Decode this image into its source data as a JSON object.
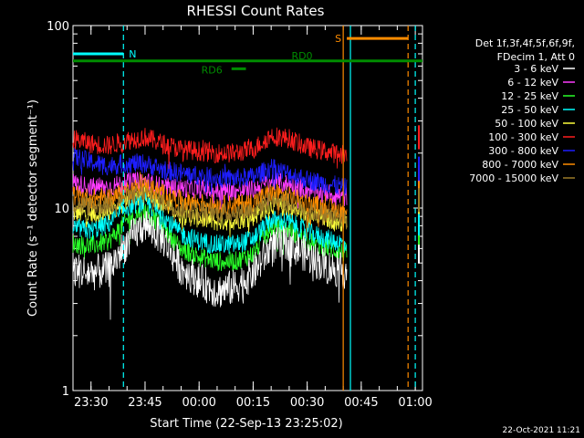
{
  "chart_data": {
    "type": "line",
    "title": "RHESSI Count Rates",
    "xlabel": "Start Time (22-Sep-13 23:25:02)",
    "ylabel": "Count Rate (s⁻¹ detector segment⁻¹)",
    "y_scale": "log",
    "ylim": [
      1,
      100
    ],
    "y_tick_labels": [
      "1",
      "10",
      "100"
    ],
    "x_tick_labels": [
      "23:30",
      "23:45",
      "00:00",
      "00:15",
      "00:30",
      "00:45",
      "01:00"
    ],
    "x_minutes": [
      5,
      20,
      35,
      50,
      65,
      80,
      95
    ],
    "xlim_minutes": [
      0,
      97
    ],
    "grid": false,
    "legend": {
      "position": "right",
      "header": [
        "Det 1f,3f,4f,5f,6f,9f,",
        "FDecim 1, Att 0"
      ]
    },
    "series": [
      {
        "name": "3 - 6 keV",
        "color": "#ffffff",
        "x": [
          0,
          5,
          10,
          15,
          20,
          25,
          30,
          35,
          40,
          45,
          50,
          55,
          60,
          65,
          70,
          75,
          76
        ],
        "values": [
          4.6,
          4.4,
          4.6,
          6.5,
          8.2,
          6.8,
          4.7,
          4.0,
          3.5,
          3.7,
          4.4,
          6.2,
          6.4,
          5.5,
          4.8,
          4.5,
          4.5
        ]
      },
      {
        "name": "6 - 12 keV",
        "color": "#ff3cff",
        "x": [
          0,
          5,
          10,
          15,
          20,
          25,
          30,
          35,
          40,
          45,
          50,
          55,
          60,
          65,
          70,
          75,
          76
        ],
        "values": [
          13.8,
          13.0,
          13.0,
          13.8,
          14.0,
          13.0,
          12.8,
          12.8,
          12.4,
          12.4,
          12.6,
          14.0,
          13.5,
          12.6,
          12.2,
          11.5,
          11.5
        ]
      },
      {
        "name": "12 - 25 keV",
        "color": "#28ff28",
        "x": [
          0,
          5,
          10,
          15,
          20,
          25,
          30,
          35,
          40,
          45,
          50,
          55,
          60,
          65,
          70,
          75,
          76
        ],
        "values": [
          6.4,
          6.2,
          6.6,
          8.6,
          9.7,
          7.8,
          6.0,
          5.4,
          5.1,
          5.1,
          5.6,
          7.8,
          7.6,
          6.6,
          6.1,
          5.7,
          5.7
        ]
      },
      {
        "name": "25 - 50 keV",
        "color": "#00ffff",
        "x": [
          0,
          5,
          10,
          15,
          20,
          25,
          30,
          35,
          40,
          45,
          50,
          55,
          60,
          65,
          70,
          75,
          76
        ],
        "values": [
          7.8,
          7.5,
          8.2,
          10.2,
          10.8,
          9.0,
          7.2,
          6.6,
          6.3,
          6.3,
          6.8,
          8.6,
          8.4,
          7.4,
          6.8,
          6.4,
          6.4
        ]
      },
      {
        "name": "50 - 100 keV",
        "color": "#ffff3c",
        "x": [
          0,
          5,
          10,
          15,
          20,
          25,
          30,
          35,
          40,
          45,
          50,
          55,
          60,
          65,
          70,
          75,
          76
        ],
        "values": [
          9.4,
          9.2,
          9.5,
          11.0,
          12.0,
          10.6,
          9.2,
          8.8,
          8.4,
          8.6,
          9.0,
          10.4,
          10.0,
          9.2,
          8.8,
          8.4,
          8.4
        ]
      },
      {
        "name": "100 - 300 keV",
        "color": "#ff1e1e",
        "x": [
          0,
          5,
          10,
          15,
          20,
          25,
          30,
          35,
          40,
          45,
          50,
          55,
          60,
          65,
          70,
          75,
          76
        ],
        "values": [
          24.0,
          22.5,
          22.0,
          23.5,
          24.5,
          22.5,
          21.0,
          20.5,
          20.0,
          20.0,
          21.0,
          25.0,
          24.0,
          21.5,
          20.5,
          19.5,
          19.0
        ]
      },
      {
        "name": "300 - 800 keV",
        "color": "#1e1eff",
        "x": [
          0,
          5,
          10,
          15,
          20,
          25,
          30,
          35,
          40,
          45,
          50,
          55,
          60,
          65,
          70,
          75,
          76
        ],
        "values": [
          19.2,
          17.8,
          17.0,
          17.6,
          17.5,
          16.2,
          15.5,
          15.0,
          14.6,
          14.5,
          14.8,
          16.6,
          15.4,
          14.3,
          13.6,
          13.0,
          12.8
        ]
      },
      {
        "name": "800 - 7000 keV",
        "color": "#ff8c00",
        "x": [
          0,
          5,
          10,
          15,
          20,
          25,
          30,
          35,
          40,
          45,
          50,
          55,
          60,
          65,
          70,
          75,
          76
        ],
        "values": [
          11.8,
          11.3,
          11.4,
          12.5,
          13.2,
          12.0,
          11.0,
          10.7,
          10.4,
          10.4,
          10.8,
          12.2,
          11.6,
          10.6,
          10.1,
          9.6,
          9.4
        ]
      },
      {
        "name": "7000 - 15000 keV",
        "color": "#9a7a28",
        "x": [
          0,
          5,
          10,
          15,
          20,
          25,
          30,
          35,
          40,
          45,
          50,
          55,
          60,
          65,
          70,
          75,
          76
        ],
        "values": [
          10.6,
          10.2,
          10.4,
          11.4,
          12.0,
          10.8,
          9.9,
          9.7,
          9.4,
          9.4,
          9.8,
          11.2,
          10.6,
          9.7,
          9.2,
          8.8,
          8.6
        ]
      }
    ],
    "annotations": [
      {
        "text": "N",
        "color": "#00ffff",
        "x_start": 0,
        "x_end": 14,
        "y": 70
      },
      {
        "text": "S",
        "color": "#ff8c00",
        "x_start": 76,
        "x_end": 93,
        "y": 85
      },
      {
        "text": "RD0",
        "color": "#008c00",
        "x_start": 0,
        "x_end": 97,
        "y": 64
      },
      {
        "text": "RD6",
        "color": "#008c00",
        "x_start": 44,
        "x_end": 48,
        "y": 58
      }
    ],
    "vertical_markers": [
      {
        "x": 14,
        "color": "#00ffff",
        "style": "dashed"
      },
      {
        "x": 75,
        "color": "#ff8c00",
        "style": "solid"
      },
      {
        "x": 77,
        "color": "#00ffff",
        "style": "solid"
      },
      {
        "x": 93,
        "color": "#ff8c00",
        "style": "dashed"
      },
      {
        "x": 95,
        "color": "#00ffff",
        "style": "dashed"
      }
    ]
  },
  "footer_date": "22-Oct-2021 11:21"
}
